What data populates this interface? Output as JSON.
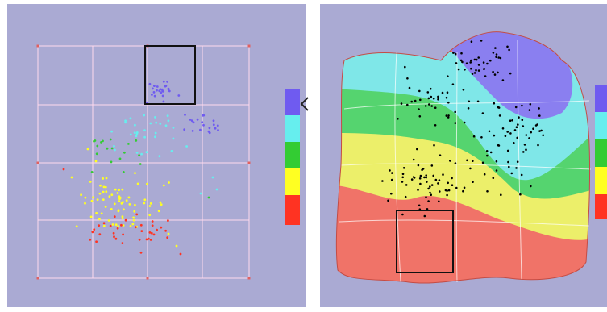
{
  "colors": {
    "panel_background": "#aaaad3",
    "grid": "#ffd9ee",
    "grid_marker": "#e06060",
    "selection_box": "#111111",
    "points_surface": "#000000",
    "legend_bands": [
      "#6f5bf0",
      "#66eeee",
      "#33cc33",
      "#ffff22",
      "#ff3322"
    ],
    "surface_bands": [
      "#8a7ff0",
      "#7fe7e8",
      "#55d46f",
      "#ecef6a",
      "#f07368"
    ]
  },
  "icons": {
    "legend_arrow": "chevron-left-icon"
  },
  "scatter_clusters": [
    {
      "name": "cluster-1",
      "color": "#6f5bf0",
      "count": 26
    },
    {
      "name": "cluster-2",
      "color": "#6f5bf0",
      "count": 20
    },
    {
      "name": "cluster-3",
      "color": "#66eeee",
      "count": 32
    },
    {
      "name": "cluster-4",
      "color": "#33cc33",
      "count": 18
    },
    {
      "name": "cluster-5",
      "color": "#ffff22",
      "count": 70
    },
    {
      "name": "cluster-6",
      "color": "#ff3322",
      "count": 36
    }
  ]
}
